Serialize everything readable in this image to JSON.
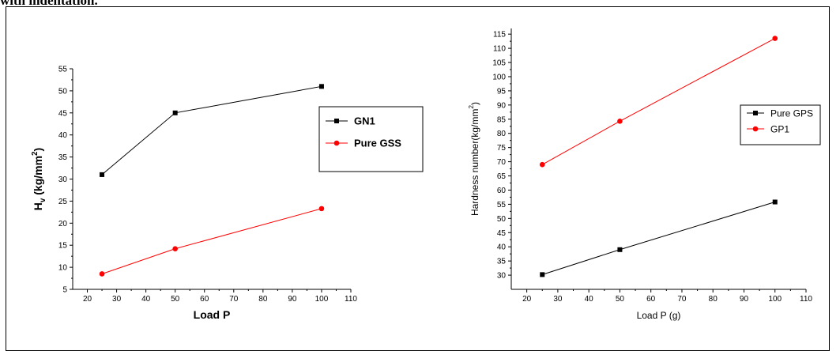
{
  "caption": "with indentation.",
  "chart_data": [
    {
      "type": "line",
      "title": "",
      "xlabel": "Load P",
      "ylabel_main": "H",
      "ylabel_sub": "v",
      "ylabel_unit": " (kg/mm",
      "ylabel_sup": "2",
      "ylabel_close": ")",
      "xlim": [
        15,
        110
      ],
      "ylim": [
        5,
        55
      ],
      "xticks": [
        20,
        30,
        40,
        50,
        60,
        70,
        80,
        90,
        100,
        110
      ],
      "yticks": [
        5,
        10,
        15,
        20,
        25,
        30,
        35,
        40,
        45,
        50,
        55
      ],
      "legend_position": "middle-right",
      "series": [
        {
          "name": "GN1",
          "marker": "square",
          "color": "#000000",
          "x": [
            25,
            50,
            100
          ],
          "y": [
            31,
            45,
            51
          ]
        },
        {
          "name": "Pure GSS",
          "marker": "circle",
          "color": "#ff0000",
          "x": [
            25,
            50,
            100
          ],
          "y": [
            8.5,
            14.2,
            23.3
          ]
        }
      ]
    },
    {
      "type": "line",
      "title": "",
      "xlabel": "Load P (g)",
      "ylabel_main": "Hardness number(kg/mm",
      "ylabel_sup": "2",
      "ylabel_close": ")",
      "xlim": [
        15,
        110
      ],
      "ylim": [
        25,
        117
      ],
      "xticks": [
        20,
        30,
        40,
        50,
        60,
        70,
        80,
        90,
        100,
        110
      ],
      "yticks": [
        30,
        35,
        40,
        45,
        50,
        55,
        60,
        65,
        70,
        75,
        80,
        85,
        90,
        95,
        100,
        105,
        110,
        115
      ],
      "legend_position": "top-right",
      "series": [
        {
          "name": "Pure GPS",
          "marker": "square",
          "color": "#000000",
          "x": [
            25,
            50,
            100
          ],
          "y": [
            30.2,
            39,
            55.8
          ]
        },
        {
          "name": "GP1",
          "marker": "circle",
          "color": "#ff0000",
          "x": [
            25,
            50,
            100
          ],
          "y": [
            69,
            84.3,
            113.5
          ]
        }
      ]
    }
  ]
}
